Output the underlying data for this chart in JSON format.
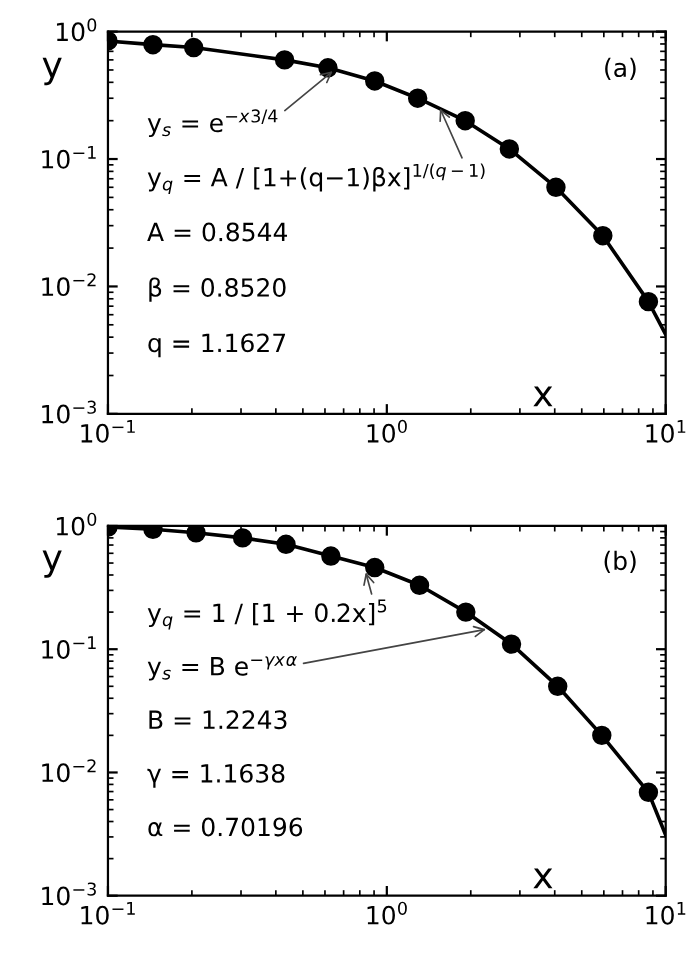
{
  "chart_data": [
    {
      "type": "line",
      "xlabel": "x",
      "ylabel": "y",
      "log": "xy",
      "grid": false,
      "xlim": [
        0.1,
        10
      ],
      "ylim": [
        0.001,
        1
      ],
      "xticks": [
        {
          "value": 0.1,
          "label": "10$^{−1}$"
        },
        {
          "value": 1,
          "label": "10$^{0}$"
        },
        {
          "value": 10,
          "label": "10$^{1}$"
        }
      ],
      "yticks": [
        {
          "value": 0.001,
          "label": "10$^{−3}$"
        },
        {
          "value": 0.01,
          "label": "10$^{−2}$"
        },
        {
          "value": 0.1,
          "label": "10$^{−1}$"
        },
        {
          "value": 1,
          "label": "10$^{0}$"
        }
      ],
      "series": [
        {
          "color": "#000000",
          "marker": "none",
          "x": [
            0.1,
            0.145,
            0.203,
            0.43,
            0.615,
            0.905,
            1.29,
            1.91,
            2.75,
            4.04,
            5.95,
            8.67,
            10
          ],
          "values": [
            0.845,
            0.79,
            0.75,
            0.6,
            0.52,
            0.41,
            0.3,
            0.2,
            0.12,
            0.06,
            0.025,
            0.0076,
            0.0042
          ]
        },
        {
          "type": "scatter",
          "color": "#000000",
          "marker": "circle",
          "x": [
            0.1,
            0.145,
            0.203,
            0.43,
            0.615,
            0.905,
            1.29,
            1.91,
            2.75,
            4.04,
            5.95,
            8.67
          ],
          "values": [
            0.845,
            0.79,
            0.75,
            0.6,
            0.52,
            0.41,
            0.3,
            0.2,
            0.12,
            0.06,
            0.025,
            0.0076
          ]
        }
      ],
      "annotations": [
        "(a)",
        {
          "text": "y$_{s}$ = e$^{−x}$$^{3/4}$",
          "x": 0.64,
          "y": 0.49
        },
        {
          "text": "y$_{q}$ = A / [1+(q−1)βx]$^{1/(q−1)}$",
          "x": 1.55,
          "y": 0.25
        },
        "A = 0.8544",
        "β = 0.8520",
        "q = 1.1627"
      ]
    },
    {
      "type": "line",
      "xlabel": "x",
      "ylabel": "y",
      "log": "xy",
      "grid": false,
      "xlim": [
        0.1,
        10
      ],
      "ylim": [
        0.001,
        1
      ],
      "xticks": [
        {
          "value": 0.1,
          "label": "10$^{−1}$"
        },
        {
          "value": 1,
          "label": "10$^{0}$"
        },
        {
          "value": 10,
          "label": "10$^{1}$"
        }
      ],
      "yticks": [
        {
          "value": 0.001,
          "label": "10$^{−3}$"
        },
        {
          "value": 0.01,
          "label": "10$^{−2}$"
        },
        {
          "value": 0.1,
          "label": "10$^{−1}$"
        },
        {
          "value": 1,
          "label": "10$^{0}$"
        }
      ],
      "series": [
        {
          "color": "#000000",
          "marker": "none",
          "x": [
            0.1,
            0.145,
            0.207,
            0.304,
            0.435,
            0.63,
            0.905,
            1.31,
            1.92,
            2.8,
            4.1,
            5.9,
            8.67,
            10
          ],
          "values": [
            0.98,
            0.94,
            0.88,
            0.8,
            0.71,
            0.57,
            0.46,
            0.33,
            0.2,
            0.11,
            0.05,
            0.02,
            0.0069,
            0.0031
          ]
        },
        {
          "type": "scatter",
          "color": "#000000",
          "marker": "circle",
          "x": [
            0.1,
            0.145,
            0.207,
            0.304,
            0.435,
            0.63,
            0.905,
            1.31,
            1.92,
            2.8,
            4.1,
            5.9,
            8.67
          ],
          "values": [
            0.98,
            0.94,
            0.88,
            0.8,
            0.71,
            0.57,
            0.46,
            0.33,
            0.2,
            0.11,
            0.05,
            0.02,
            0.0069
          ]
        }
      ],
      "annotations": [
        "(b)",
        {
          "text": "y$_{q}$ = 1 / [1 + 0.2x]$^{5}$",
          "x": 0.84,
          "y": 0.42
        },
        {
          "text": "y$_{s}$ = B e$^{−γx}$$^{α}$",
          "x": 2.27,
          "y": 0.145
        },
        "B = 1.2243",
        "γ = 1.1638",
        "α = 0.70196"
      ]
    }
  ]
}
